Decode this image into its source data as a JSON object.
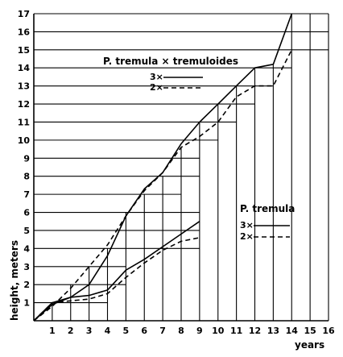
{
  "chart_data": {
    "type": "line",
    "xlabel": "years",
    "ylabel": "height, meters",
    "xlim": [
      0,
      16
    ],
    "ylim": [
      0,
      17
    ],
    "x_ticks": [
      "1",
      "2",
      "3",
      "4",
      "5",
      "6",
      "7",
      "8",
      "9",
      "10",
      "11",
      "12",
      "13",
      "14",
      "15",
      "16"
    ],
    "y_ticks": [
      "1",
      "2",
      "3",
      "4",
      "5",
      "6",
      "7",
      "8",
      "9",
      "10",
      "11",
      "12",
      "13",
      "14",
      "15",
      "16",
      "17"
    ],
    "grid": "partial",
    "groups": [
      {
        "title": "P. tremula × tremuloides",
        "legend_position": "upper-center",
        "series": [
          {
            "name": "3×",
            "style": "solid",
            "x": [
              0,
              1,
              2,
              3,
              4,
              5,
              6,
              7,
              8,
              9,
              10,
              11,
              12,
              13,
              14
            ],
            "y": [
              0,
              1.0,
              1.3,
              2.0,
              3.6,
              5.8,
              7.3,
              8.2,
              9.8,
              11.0,
              12.0,
              13.0,
              14.0,
              14.2,
              17.0
            ]
          },
          {
            "name": "2×",
            "style": "dashed",
            "x": [
              0,
              1,
              2,
              3,
              4,
              5,
              6,
              7,
              8,
              9,
              10,
              11,
              12,
              13,
              14
            ],
            "y": [
              0,
              0.8,
              1.8,
              3.0,
              4.2,
              5.8,
              7.2,
              8.2,
              9.6,
              10.2,
              11.0,
              12.4,
              13.0,
              13.0,
              15.0
            ]
          }
        ]
      },
      {
        "title": "P. tremula",
        "legend_position": "middle-right",
        "series": [
          {
            "name": "3×",
            "style": "solid",
            "x": [
              0,
              1,
              2,
              3,
              4,
              5,
              6,
              7,
              8,
              9
            ],
            "y": [
              0,
              0.9,
              1.3,
              1.4,
              1.7,
              2.8,
              3.4,
              4.1,
              4.8,
              5.5
            ]
          },
          {
            "name": "2×",
            "style": "dashed",
            "x": [
              0,
              1,
              2,
              3,
              4,
              5,
              6,
              7,
              8,
              9
            ],
            "y": [
              0,
              1.0,
              1.1,
              1.2,
              1.5,
              2.4,
              3.2,
              3.9,
              4.4,
              4.6
            ]
          }
        ]
      }
    ]
  }
}
